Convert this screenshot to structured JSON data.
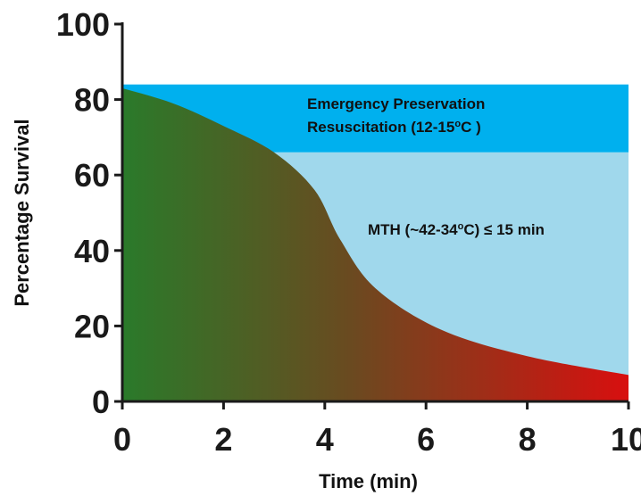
{
  "chart_data": {
    "type": "area",
    "title": "",
    "xlabel": "Time (min)",
    "ylabel": "Percentage Survival",
    "xlim": [
      0,
      10
    ],
    "ylim": [
      0,
      100
    ],
    "xticks": [
      0,
      2,
      4,
      6,
      8,
      10
    ],
    "yticks": [
      0,
      20,
      40,
      60,
      80,
      100
    ],
    "x_tick_labels": [
      "0",
      "2",
      "4",
      "6",
      "8",
      "10"
    ],
    "y_tick_labels": [
      "0",
      "20",
      "40",
      "60",
      "80",
      "100"
    ],
    "grid": false,
    "series": [
      {
        "x": [
          0,
          1,
          2,
          3,
          3.8,
          4.3,
          5,
          6.3,
          8,
          10
        ],
        "y": [
          83,
          79,
          73,
          66,
          56,
          43,
          30,
          19,
          12,
          7
        ],
        "gradient_colors": [
          "#2a7a2a",
          "#6a4a20",
          "#d80f0f"
        ]
      }
    ],
    "regions": [
      {
        "x_range": [
          0,
          10
        ],
        "y_range": [
          66,
          84
        ],
        "color": "#00b0ee",
        "label_line1": "Emergency Preservation",
        "label_line2": "Resuscitation  (12-15",
        "label_sup": "o",
        "label_end": "C )"
      },
      {
        "x_range": [
          0,
          10
        ],
        "y_range": [
          0,
          66
        ],
        "color": "#a0d8ec",
        "label_pre": "MTH (~42-34",
        "label_sup": "o",
        "label_post": "C) ≤ 15 min"
      }
    ]
  }
}
